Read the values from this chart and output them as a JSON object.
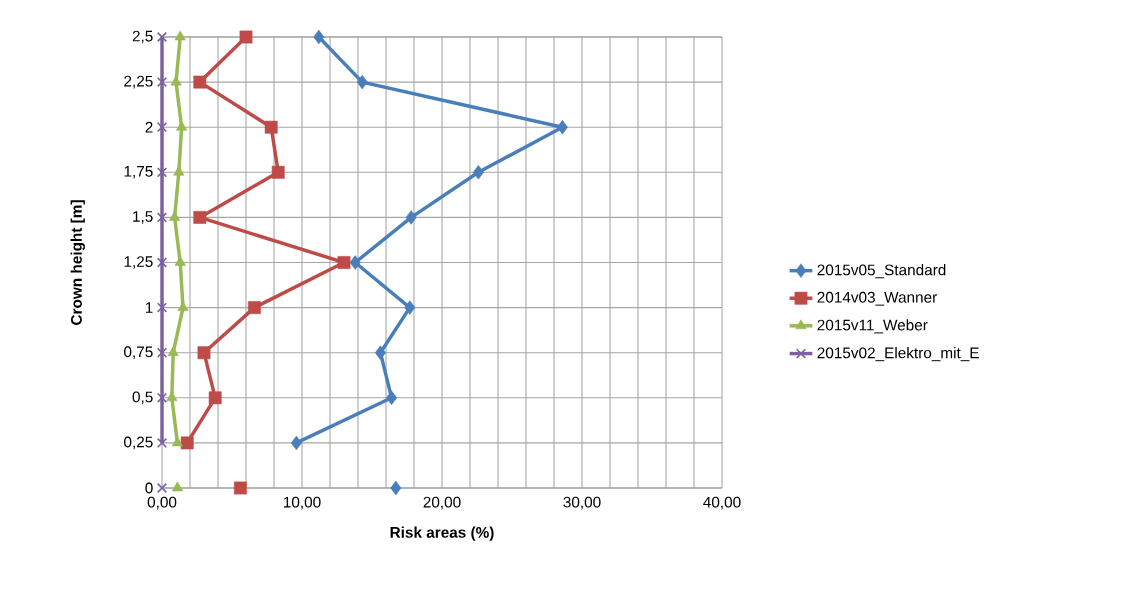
{
  "chart_data": {
    "type": "line",
    "orientation": "horizontal",
    "xlabel": "Risk areas (%)",
    "ylabel": "Crown height [m]",
    "categories": [
      "2,5",
      "2,25",
      "2",
      "1,75",
      "1,5",
      "1,25",
      "1",
      "0,75",
      "0,5",
      "0,25",
      "0"
    ],
    "xlim": [
      0,
      40
    ],
    "xticks": [
      {
        "value": 0,
        "label": "0,00"
      },
      {
        "value": 2,
        "label": null
      },
      {
        "value": 4,
        "label": null
      },
      {
        "value": 6,
        "label": null
      },
      {
        "value": 8,
        "label": null
      },
      {
        "value": 10,
        "label": "10,00"
      },
      {
        "value": 12,
        "label": null
      },
      {
        "value": 14,
        "label": null
      },
      {
        "value": 16,
        "label": null
      },
      {
        "value": 18,
        "label": null
      },
      {
        "value": 20,
        "label": "20,00"
      },
      {
        "value": 22,
        "label": null
      },
      {
        "value": 24,
        "label": null
      },
      {
        "value": 26,
        "label": null
      },
      {
        "value": 28,
        "label": null
      },
      {
        "value": 30,
        "label": "30,00"
      },
      {
        "value": 32,
        "label": null
      },
      {
        "value": 34,
        "label": null
      },
      {
        "value": 36,
        "label": null
      },
      {
        "value": 38,
        "label": null
      },
      {
        "value": 40,
        "label": "40,00"
      }
    ],
    "grid": true,
    "legend": "right",
    "line_style": "solid",
    "series": [
      {
        "name": "2015v05_Standard",
        "color": "#4a7ebb",
        "marker": "diamond",
        "values": [
          11.2,
          14.3,
          28.6,
          22.6,
          17.8,
          13.8,
          17.7,
          15.6,
          16.4,
          9.6,
          null
        ]
      },
      {
        "name": "2014v03_Wanner",
        "color": "#be4b48",
        "marker": "square",
        "values": [
          6.0,
          2.7,
          7.8,
          8.3,
          2.7,
          13.0,
          6.6,
          3.0,
          3.8,
          1.8,
          null
        ]
      },
      {
        "name": "2015v11_Weber",
        "color": "#98b954",
        "marker": "triangle",
        "values": [
          1.3,
          1.0,
          1.4,
          1.2,
          0.9,
          1.3,
          1.5,
          0.8,
          0.7,
          1.1,
          null
        ]
      },
      {
        "name": "2015v02_Elektro_mit_E",
        "color": "#7d60a0",
        "marker": "cross",
        "values": [
          0,
          0,
          0,
          0,
          0,
          0,
          0,
          0,
          0,
          0,
          null
        ]
      },
      {
        "type": "scatter",
        "color": "#4a7ebb",
        "marker": "diamond",
        "values": [
          null,
          null,
          null,
          null,
          null,
          null,
          null,
          null,
          null,
          null,
          16.7
        ]
      },
      {
        "type": "scatter",
        "color": "#be4b48",
        "marker": "square",
        "values": [
          null,
          null,
          null,
          null,
          null,
          null,
          null,
          null,
          null,
          null,
          5.6
        ]
      },
      {
        "type": "scatter",
        "color": "#98b954",
        "marker": "triangle",
        "values": [
          null,
          null,
          null,
          null,
          null,
          null,
          null,
          null,
          null,
          null,
          1.1
        ]
      },
      {
        "type": "scatter",
        "color": "#7d60a0",
        "marker": "cross",
        "values": [
          null,
          null,
          null,
          null,
          null,
          null,
          null,
          null,
          null,
          null,
          0
        ]
      }
    ]
  }
}
